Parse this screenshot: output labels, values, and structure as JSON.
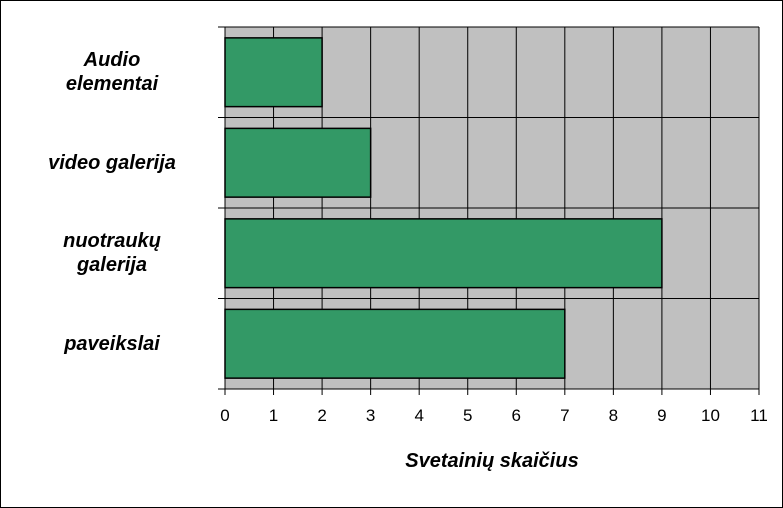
{
  "chart_data": {
    "type": "bar",
    "orientation": "horizontal",
    "categories": [
      "Audio\nelementai",
      "video galerija",
      "nuotraukų\ngalerija",
      "paveikslai"
    ],
    "values": [
      2,
      3,
      9,
      7
    ],
    "color": "#339966",
    "plot_background": "#c0c0c0",
    "xlabel": "Svetainių skaičius",
    "xlim": [
      0,
      11
    ],
    "xticks": [
      0,
      1,
      2,
      3,
      4,
      5,
      6,
      7,
      8,
      9,
      10,
      11
    ],
    "grid": true
  }
}
